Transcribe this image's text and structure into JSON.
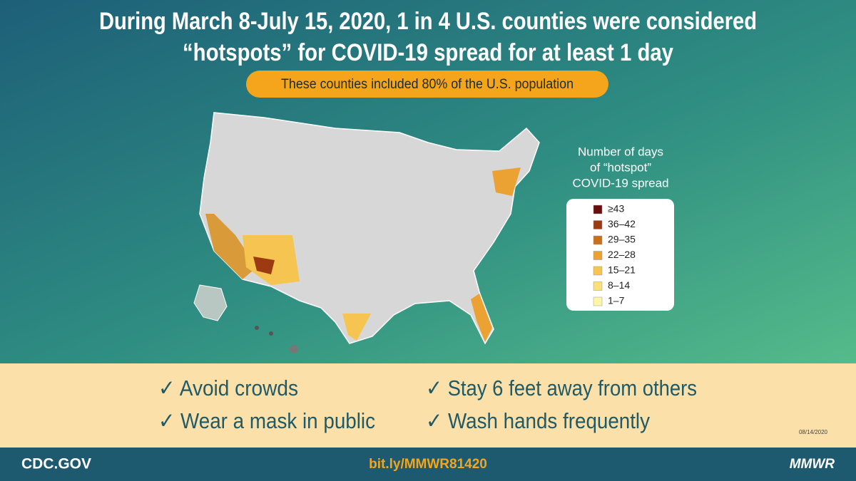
{
  "header": {
    "title_lines": [
      "During March 8-July 15, 2020, 1 in 4 U.S. counties were considered",
      "“hotspots” for COVID-19 spread for at least 1 day"
    ],
    "subtitle": "These counties included 80% of the U.S. population"
  },
  "legend": {
    "title_lines": [
      "Number of days",
      "of “hotspot”",
      "COVID-19 spread"
    ],
    "items": [
      {
        "label": "≥43",
        "color": "#6b0d0d"
      },
      {
        "label": "36–42",
        "color": "#9c3b12"
      },
      {
        "label": "29–35",
        "color": "#c8701e"
      },
      {
        "label": "22–28",
        "color": "#eba233"
      },
      {
        "label": "15–21",
        "color": "#f5c451"
      },
      {
        "label": "8–14",
        "color": "#fbe07a"
      },
      {
        "label": "1–7",
        "color": "#fdf6a8"
      }
    ]
  },
  "tips": [
    "✓ Avoid crowds",
    "✓ Stay 6 feet away from others",
    "✓ Wear a mask in public",
    "✓ Wash hands frequently"
  ],
  "date": "08/14/2020",
  "footer": {
    "left": "CDC.GOV",
    "center": "bit.ly/MMWR81420",
    "right": "MMWR"
  }
}
